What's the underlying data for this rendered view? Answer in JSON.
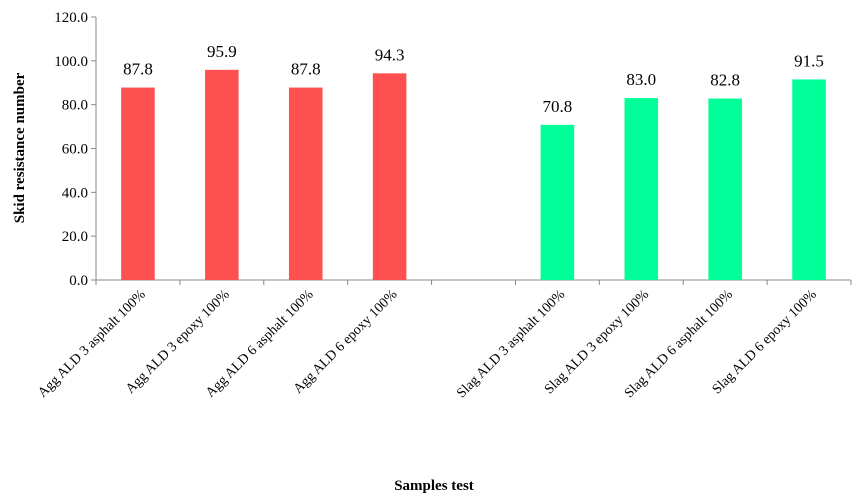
{
  "chart_data": {
    "type": "bar",
    "title": "",
    "xlabel": "Samples test",
    "ylabel": "Skid resistance number",
    "ylim": [
      0,
      120
    ],
    "yticks": [
      0,
      20,
      40,
      60,
      80,
      100,
      120
    ],
    "ytick_labels": [
      "0.0",
      "20.0",
      "40.0",
      "60.0",
      "80.0",
      "100.0",
      "120.0"
    ],
    "grid": false,
    "legend": "none",
    "categories": [
      "Agg ALD 3 asphalt 100%",
      "Agg ALD 3 epoxy 100%",
      "Agg ALD 6 asphalt 100%",
      "Agg ALD 6 epoxy 100%",
      "",
      "Slag ALD 3 asphalt 100%",
      "Slag ALD 3 epoxy 100%",
      "Slag ALD 6 asphalt 100%",
      "Slag ALD 6 epoxy 100%"
    ],
    "values": [
      87.8,
      95.9,
      87.8,
      94.3,
      null,
      70.8,
      83.0,
      82.8,
      91.5
    ],
    "value_labels": [
      "87.8",
      "95.9",
      "87.8",
      "94.3",
      "",
      "70.8",
      "83.0",
      "82.8",
      "91.5"
    ],
    "bar_colors": [
      "#ff5050",
      "#ff5050",
      "#ff5050",
      "#ff5050",
      "",
      "#00ff99",
      "#00ff99",
      "#00ff99",
      "#00ff99"
    ]
  }
}
